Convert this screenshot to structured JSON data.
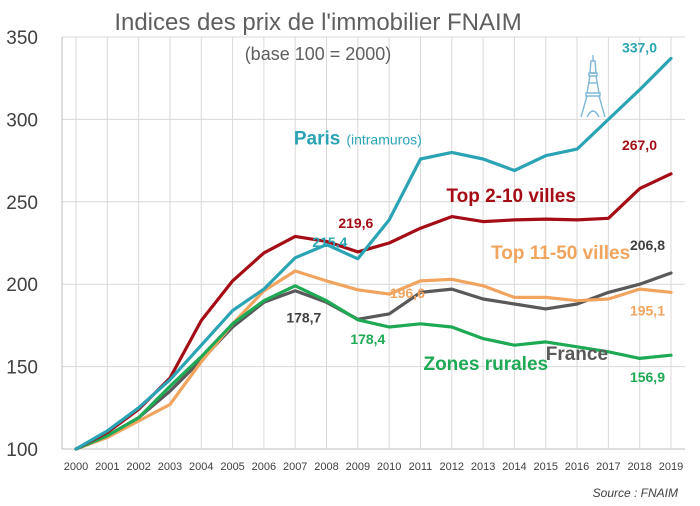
{
  "chart_data": {
    "type": "line",
    "title": "Indices des prix de l'immobilier FNAIM",
    "subtitle": "(base 100 = 2000)",
    "source": "Source :  FNAIM",
    "x": [
      "2000",
      "2001",
      "2002",
      "2003",
      "2004",
      "2005",
      "2006",
      "2007",
      "2008",
      "2009",
      "2010",
      "2011",
      "2012",
      "2013",
      "2014",
      "2015",
      "2016",
      "2017",
      "2018",
      "2019"
    ],
    "ylim": [
      100,
      350
    ],
    "yticks": [
      100,
      150,
      200,
      250,
      300,
      350
    ],
    "grid": true,
    "series": [
      {
        "key": "paris",
        "name": "Paris",
        "name_suffix": "(intramuros)",
        "color": "#2aa4b4",
        "values": [
          100,
          111,
          125,
          142,
          163,
          184,
          197,
          216,
          224,
          215.4,
          239,
          276,
          280,
          276,
          269,
          278,
          282,
          300,
          318,
          337.0
        ],
        "labels": [
          {
            "index": 9,
            "text": "215,4"
          },
          {
            "index": 19,
            "text": "337,0"
          }
        ]
      },
      {
        "key": "top2_10",
        "name": "Top 2-10 villes",
        "color": "#a50d16",
        "values": [
          100,
          110,
          124,
          143,
          178,
          202,
          219,
          229,
          226,
          219.6,
          225,
          234,
          241,
          238,
          239,
          239.5,
          239,
          240,
          258,
          267.0
        ],
        "labels": [
          {
            "index": 9,
            "text": "219,6"
          },
          {
            "index": 19,
            "text": "267,0"
          }
        ]
      },
      {
        "key": "top11_50",
        "name": "Top 11-50 villes",
        "color": "#f0a45e",
        "values": [
          100,
          107,
          117,
          127,
          153,
          176,
          196,
          208,
          202,
          196.6,
          194,
          202,
          203,
          199,
          192,
          192,
          190,
          191,
          197,
          195.1
        ],
        "labels": [
          {
            "index": 9,
            "text": "196,6"
          },
          {
            "index": 19,
            "text": "195,1"
          }
        ]
      },
      {
        "key": "france",
        "name": "France",
        "color": "#595959",
        "values": [
          100,
          108,
          119,
          135,
          154,
          174,
          189,
          196,
          189,
          178.7,
          182,
          195,
          197,
          191,
          188,
          185,
          188,
          195,
          200,
          206.8
        ],
        "labels": [
          {
            "index": 9,
            "text": "178,7"
          },
          {
            "index": 19,
            "text": "206,8"
          }
        ]
      },
      {
        "key": "rurales",
        "name": "Zones rurales",
        "color": "#1ea955",
        "values": [
          100,
          108,
          119,
          138,
          156,
          176,
          190,
          199,
          190,
          178.4,
          174,
          176,
          174,
          167,
          163,
          165,
          162,
          159,
          155,
          156.9
        ],
        "labels": [
          {
            "index": 9,
            "text": "178,4"
          },
          {
            "index": 19,
            "text": "156,9"
          }
        ]
      }
    ],
    "icons": [
      "eiffel-tower-icon"
    ]
  }
}
